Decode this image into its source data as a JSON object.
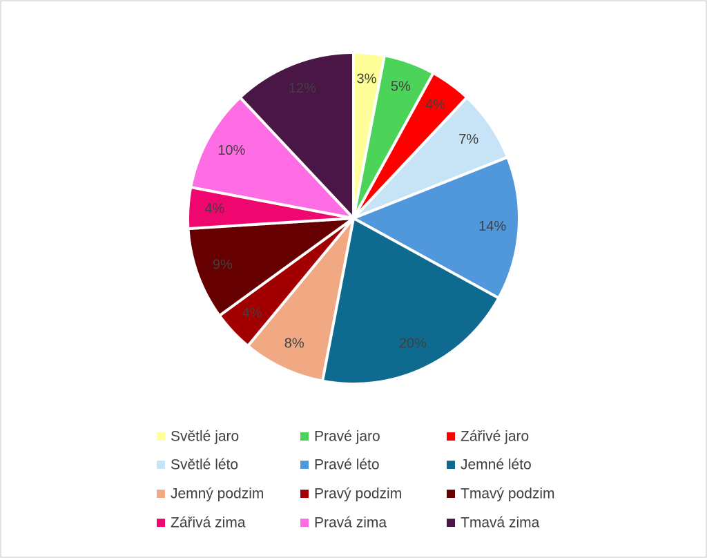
{
  "chart_data": {
    "type": "pie",
    "categories": [
      "Světlé jaro",
      "Pravé jaro",
      "Zářivé jaro",
      "Světlé léto",
      "Pravé léto",
      "Jemné léto",
      "Jemný podzim",
      "Pravý podzim",
      "Tmavý podzim",
      "Zářivá zima",
      "Pravá zima",
      "Tmavá zima"
    ],
    "values": [
      3,
      5,
      4,
      7,
      14,
      20,
      8,
      4,
      9,
      4,
      10,
      12
    ],
    "value_labels": [
      "3%",
      "5%",
      "4%",
      "7%",
      "14%",
      "20%",
      "8%",
      "4%",
      "9%",
      "4%",
      "10%",
      "12%"
    ],
    "colors": [
      "#ffff99",
      "#4cd35a",
      "#ff0000",
      "#c6e4f5",
      "#5097db",
      "#0e6a8e",
      "#f1a983",
      "#a20000",
      "#660000",
      "#ef066e",
      "#ff6de5",
      "#4a1646"
    ],
    "legend": "bottom"
  }
}
